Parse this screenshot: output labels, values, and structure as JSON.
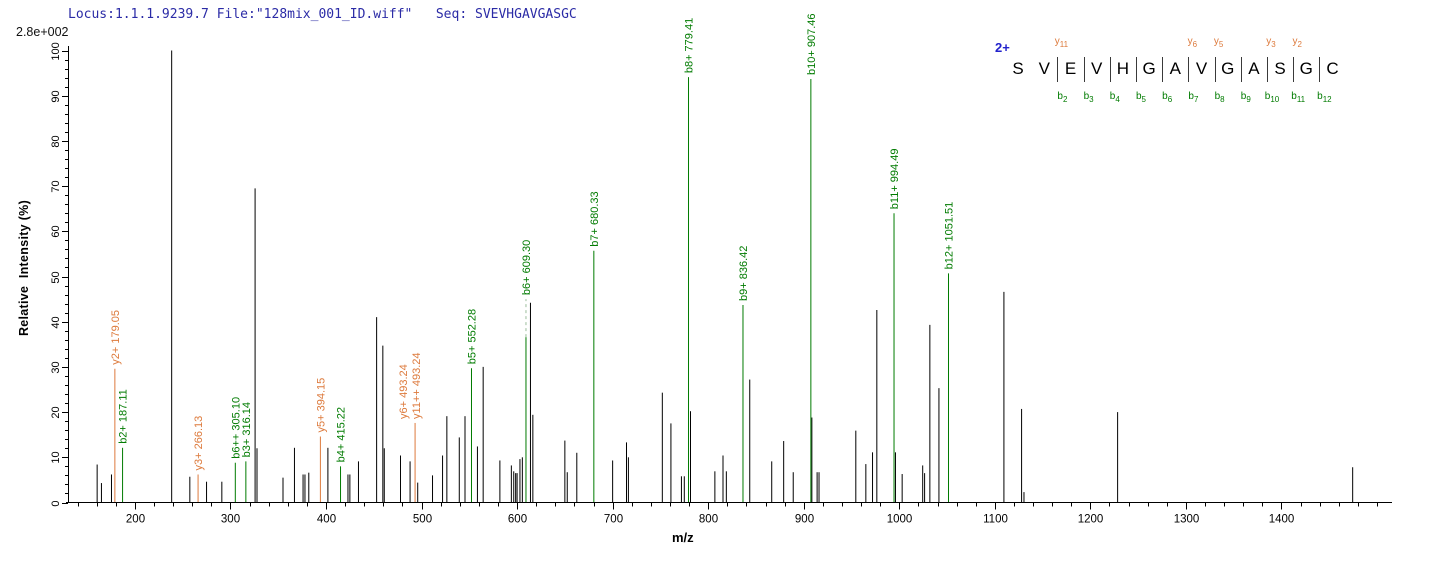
{
  "header": {
    "locus_line": "Locus:1.1.1.9239.7 File:\"128mix_001_ID.wiff\"   Seq: SVEVHGAVGASGC",
    "intensity_scale": "2.8e+002"
  },
  "axes": {
    "x_label": "m/z",
    "y_label": "Relative  Intensity (%)",
    "x_major_ticks": [
      200,
      300,
      400,
      500,
      600,
      700,
      800,
      900,
      1000,
      1100,
      1200,
      1300,
      1400
    ],
    "x_minor_step": 20,
    "x_range": [
      130,
      1513
    ],
    "y_major_ticks": [
      0,
      10,
      20,
      30,
      40,
      50,
      60,
      70,
      80,
      90,
      100
    ],
    "y_minor_step": 2,
    "y_range": [
      0,
      100
    ]
  },
  "colors": {
    "b_ion": "#007b00",
    "y_ion": "#dd7a3c",
    "peak_black": "#000000",
    "dashed_connector": "#9bbd9b",
    "header_text": "#2b2ba6",
    "charge_blue": "#2222cc",
    "axis": "#000000"
  },
  "sequence": {
    "charge": "2+",
    "residues": [
      "S",
      "V",
      "E",
      "V",
      "H",
      "G",
      "A",
      "V",
      "G",
      "A",
      "S",
      "G",
      "C"
    ],
    "fragments": [
      {
        "after": 2,
        "b": "b2",
        "y": "y11"
      },
      {
        "after": 3,
        "b": "b3"
      },
      {
        "after": 4,
        "b": "b4"
      },
      {
        "after": 5,
        "b": "b5"
      },
      {
        "after": 6,
        "b": "b6"
      },
      {
        "after": 7,
        "b": "b7",
        "y": "y6"
      },
      {
        "after": 8,
        "b": "b8",
        "y": "y5"
      },
      {
        "after": 9,
        "b": "b9"
      },
      {
        "after": 10,
        "b": "b10",
        "y": "y3"
      },
      {
        "after": 11,
        "b": "b11",
        "y": "y2"
      },
      {
        "after": 12,
        "b": "b12"
      }
    ]
  },
  "chart_data": {
    "type": "bar",
    "subtype": "ms2-mass-spectrum",
    "title": "Locus:1.1.1.9239.7 File:\"128mix_001_ID.wiff\"   Seq: SVEVHGAVGASGC",
    "xlabel": "m/z",
    "ylabel": "Relative  Intensity (%)",
    "xlim": [
      130,
      1513
    ],
    "ylim": [
      0,
      100
    ],
    "grid": false,
    "legend": false,
    "base_peak_absolute_intensity": "2.8e+002",
    "annotated_peaks": [
      {
        "label": "y2+ 179.05",
        "ion": "y",
        "mz": 179.05,
        "intensity": 29.6
      },
      {
        "label": "b2+ 187.11",
        "ion": "b",
        "mz": 187.11,
        "intensity": 12.1
      },
      {
        "label": "y3+ 266.13",
        "ion": "y",
        "mz": 266.13,
        "intensity": 6.2
      },
      {
        "label": "b6++ 305.10",
        "ion": "b",
        "mz": 305.1,
        "intensity": 8.8
      },
      {
        "label": "b3+ 316.14",
        "ion": "b",
        "mz": 316.14,
        "intensity": 9.1
      },
      {
        "label": "y5+ 394.15",
        "ion": "y",
        "mz": 394.15,
        "intensity": 14.6
      },
      {
        "label": "b4+ 415.22",
        "ion": "b",
        "mz": 415.22,
        "intensity": 8.0
      },
      {
        "label": "y6+ 493.24",
        "ion": "y",
        "mz": 493.24,
        "intensity": 17.6,
        "label_dx": -8
      },
      {
        "label": "y11++ 493.24",
        "ion": "y",
        "mz": 493.24,
        "intensity": 17.6,
        "no_line": true,
        "label_dx": 5
      },
      {
        "label": "b5+ 552.28",
        "ion": "b",
        "mz": 552.28,
        "intensity": 29.7
      },
      {
        "label": "b6+ 609.30",
        "ion": "b",
        "mz": 609.3,
        "intensity": 36.6,
        "dash_to": 45.0
      },
      {
        "label": "b7+ 680.33",
        "ion": "b",
        "mz": 680.33,
        "intensity": 55.7
      },
      {
        "label": "b8+ 779.41",
        "ion": "b",
        "mz": 779.41,
        "intensity": 94.1
      },
      {
        "label": "b9+ 836.42",
        "ion": "b",
        "mz": 836.42,
        "intensity": 43.7
      },
      {
        "label": "b10+ 907.46",
        "ion": "b",
        "mz": 907.46,
        "intensity": 93.7
      },
      {
        "label": "b11+ 994.49",
        "ion": "b",
        "mz": 994.49,
        "intensity": 64.0
      },
      {
        "label": "b12+ 1051.51",
        "ion": "b",
        "mz": 1051.51,
        "intensity": 50.7
      }
    ],
    "peaks": [
      [
        160.5,
        8.4
      ],
      [
        165,
        4.3
      ],
      [
        175.5,
        6.2
      ],
      [
        238.5,
        100
      ],
      [
        257.5,
        5.7
      ],
      [
        275,
        4.6
      ],
      [
        291,
        4.6
      ],
      [
        325.8,
        69.5
      ],
      [
        327.8,
        12.0
      ],
      [
        355,
        5.5
      ],
      [
        367,
        12.1
      ],
      [
        376,
        6.2
      ],
      [
        378,
        6.2
      ],
      [
        382,
        6.6
      ],
      [
        402,
        12.1
      ],
      [
        423,
        6.2
      ],
      [
        425,
        6.2
      ],
      [
        434,
        9.1
      ],
      [
        453,
        41.0
      ],
      [
        459.5,
        34.7
      ],
      [
        461,
        12.0
      ],
      [
        478,
        10.4
      ],
      [
        488,
        9.1
      ],
      [
        496,
        4.4
      ],
      [
        511.5,
        6.0
      ],
      [
        522,
        10.4
      ],
      [
        526.5,
        19.1
      ],
      [
        539.5,
        14.4
      ],
      [
        545.5,
        19.1
      ],
      [
        558.5,
        12.4
      ],
      [
        564.5,
        30.0
      ],
      [
        582,
        9.3
      ],
      [
        594,
        8.2
      ],
      [
        596.5,
        6.9
      ],
      [
        598.5,
        6.5
      ],
      [
        600,
        6.5
      ],
      [
        603,
        9.6
      ],
      [
        605.5,
        10.0
      ],
      [
        614,
        44.2
      ],
      [
        616.5,
        19.4
      ],
      [
        650,
        13.7
      ],
      [
        652.5,
        6.7
      ],
      [
        662.5,
        11.0
      ],
      [
        700,
        9.3
      ],
      [
        714.5,
        13.3
      ],
      [
        716.5,
        10.0
      ],
      [
        752,
        24.3
      ],
      [
        761,
        17.5
      ],
      [
        772,
        5.8
      ],
      [
        775,
        5.8
      ],
      [
        781.5,
        20.2
      ],
      [
        807,
        6.9
      ],
      [
        815.5,
        10.4
      ],
      [
        819,
        6.9
      ],
      [
        843.5,
        27.2
      ],
      [
        866.5,
        9.1
      ],
      [
        879,
        13.6
      ],
      [
        889,
        6.7
      ],
      [
        908.5,
        18.8
      ],
      [
        914,
        6.7
      ],
      [
        916,
        6.7
      ],
      [
        954.5,
        15.9
      ],
      [
        965,
        8.5
      ],
      [
        972,
        11.1
      ],
      [
        976.5,
        42.6
      ],
      [
        996,
        11.1
      ],
      [
        1003,
        6.3
      ],
      [
        1024.5,
        8.2
      ],
      [
        1026.5,
        6.5
      ],
      [
        1032,
        39.3
      ],
      [
        1041.5,
        25.3
      ],
      [
        1109.5,
        46.6
      ],
      [
        1128,
        20.7
      ],
      [
        1130.5,
        2.3
      ],
      [
        1228.5,
        20.0
      ],
      [
        1474.5,
        7.8
      ]
    ]
  }
}
